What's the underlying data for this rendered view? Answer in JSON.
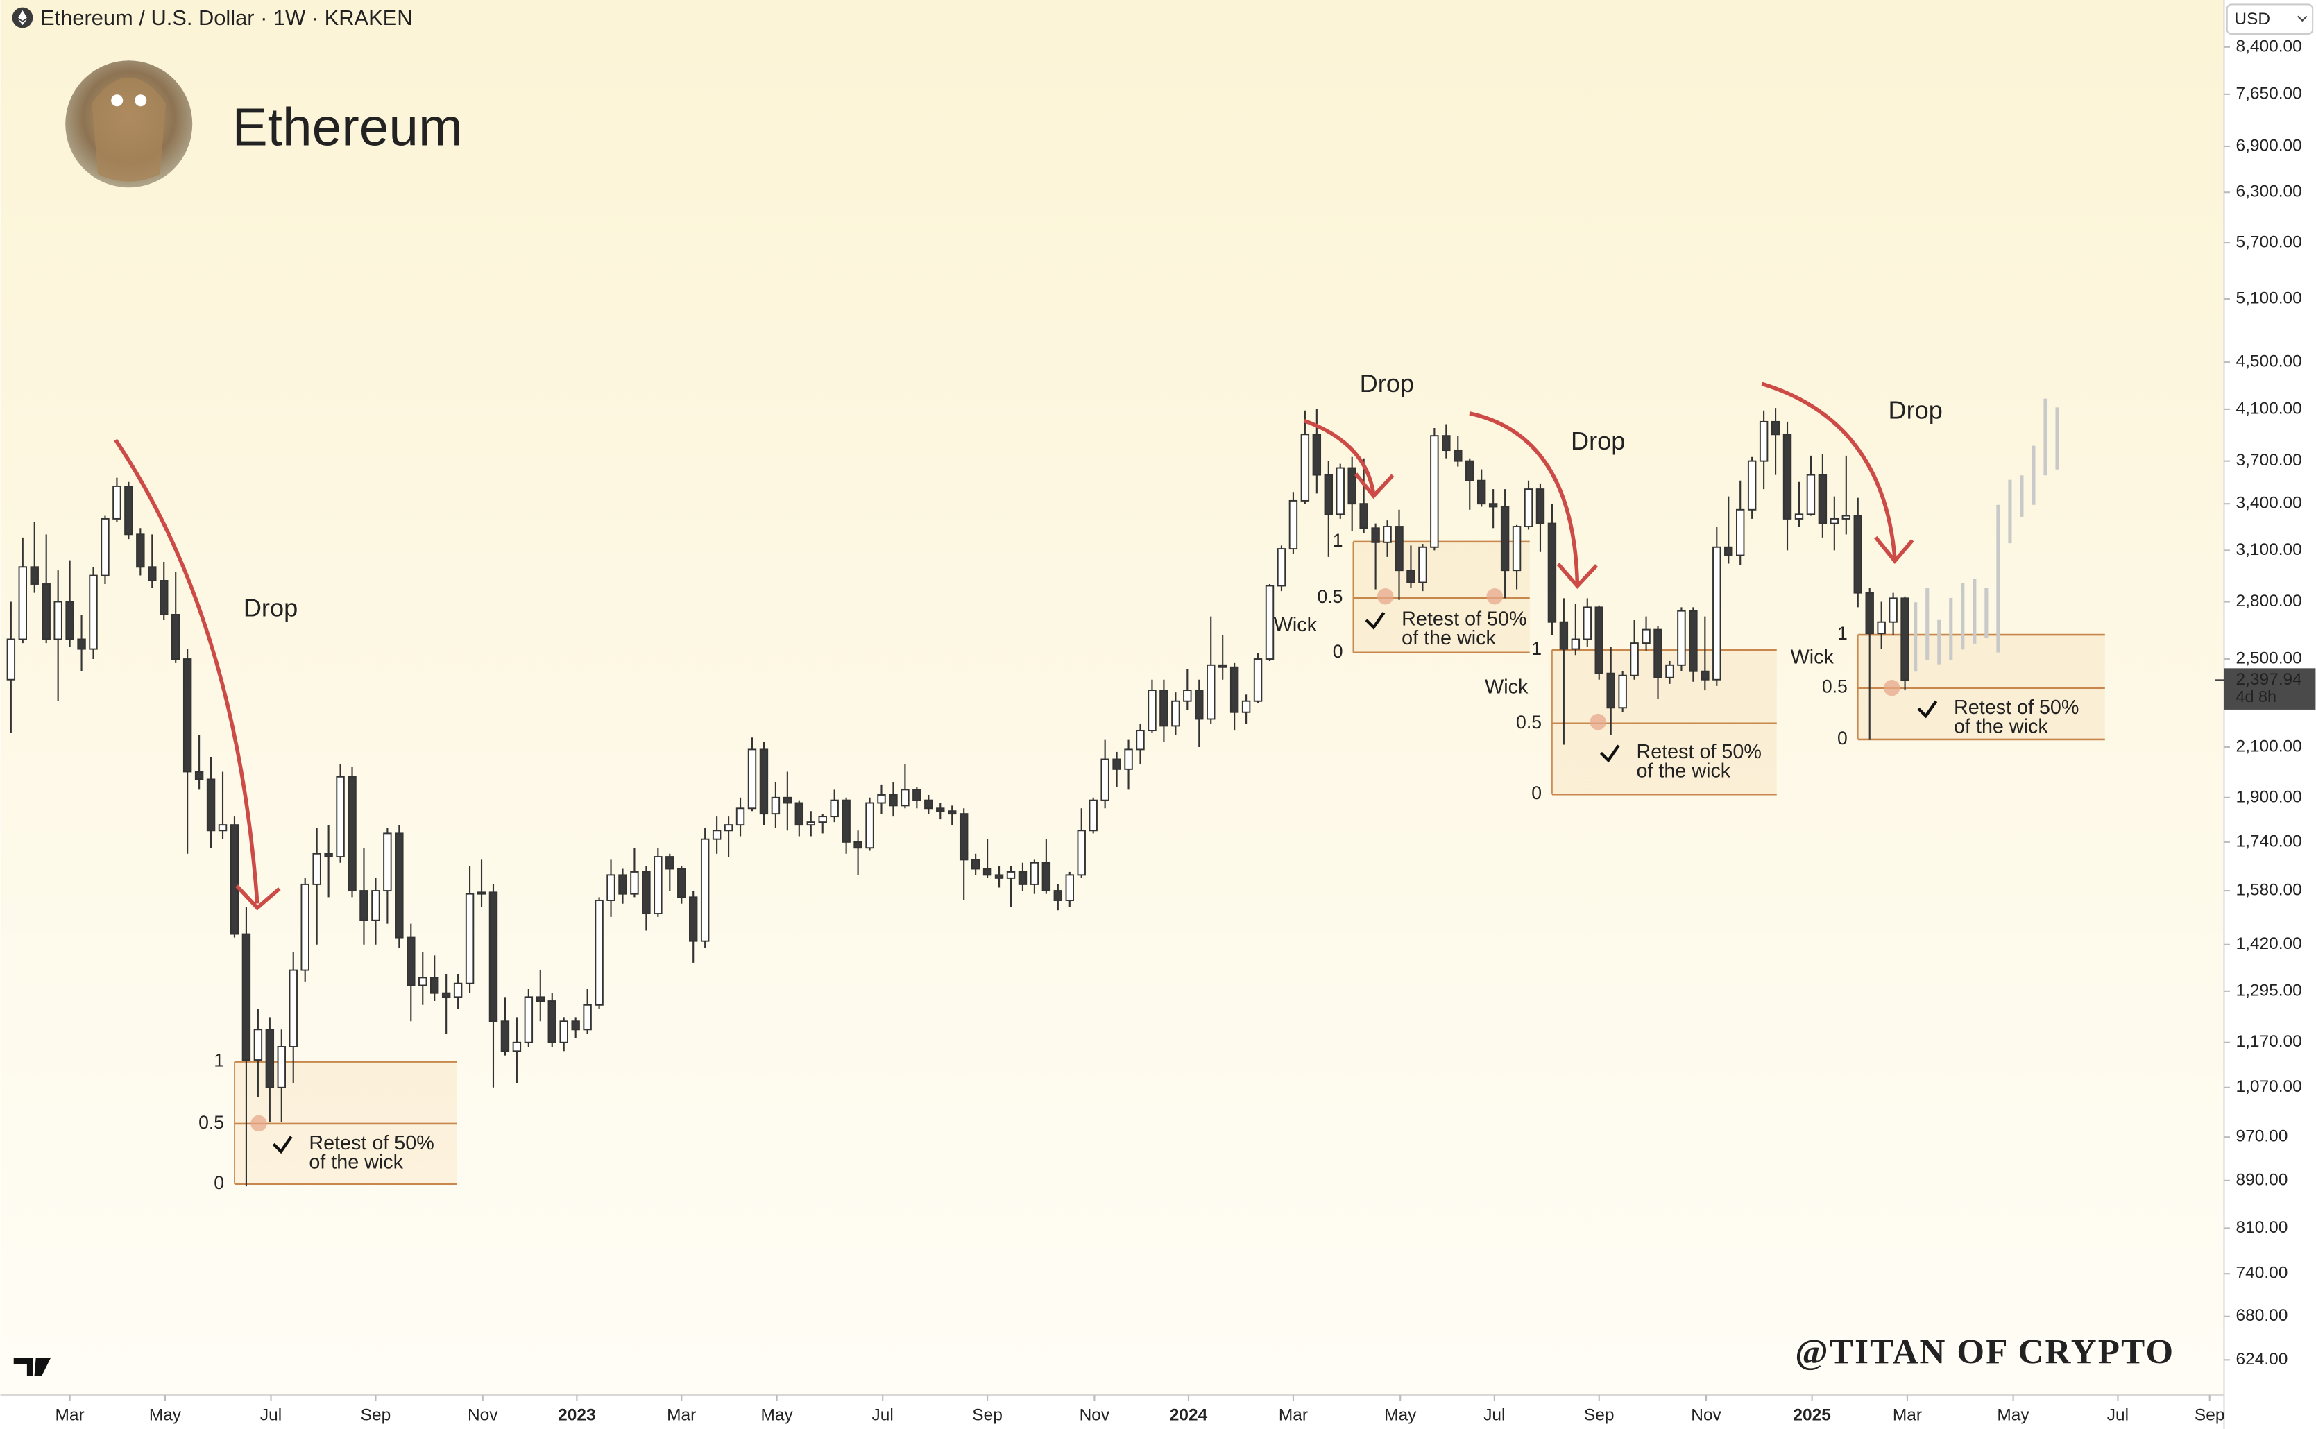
{
  "header": {
    "symbol": "Ethereum / U.S. Dollar · 1W · KRAKEN",
    "name": "Ethereum",
    "currency": "USD",
    "watermark": "@TITAN OF CRYPTO"
  },
  "chart_data": {
    "type": "candlestick",
    "up_color": "#ffffff",
    "down_color": "#3a3a3a",
    "outline_color": "#333333",
    "ohlc": [
      [
        2400,
        2800,
        2160,
        2600
      ],
      [
        2600,
        3180,
        2580,
        3000
      ],
      [
        3000,
        3280,
        2850,
        2900
      ],
      [
        2900,
        3200,
        2580,
        2600
      ],
      [
        2600,
        2980,
        2300,
        2800
      ],
      [
        2800,
        3040,
        2560,
        2600
      ],
      [
        2600,
        2730,
        2440,
        2550
      ],
      [
        2550,
        3000,
        2500,
        2950
      ],
      [
        2950,
        3320,
        2900,
        3300
      ],
      [
        3300,
        3580,
        3280,
        3520
      ],
      [
        3520,
        3550,
        3170,
        3200
      ],
      [
        3200,
        3240,
        2950,
        3000
      ],
      [
        3000,
        3200,
        2880,
        2920
      ],
      [
        2920,
        3030,
        2700,
        2730
      ],
      [
        2730,
        2970,
        2480,
        2500
      ],
      [
        2500,
        2550,
        1700,
        2000
      ],
      [
        2000,
        2150,
        1930,
        1970
      ],
      [
        1970,
        2060,
        1720,
        1780
      ],
      [
        1780,
        2000,
        1750,
        1800
      ],
      [
        1800,
        1830,
        1440,
        1450
      ],
      [
        1450,
        1530,
        880,
        1130
      ],
      [
        1130,
        1250,
        1050,
        1200
      ],
      [
        1200,
        1230,
        1000,
        1070
      ],
      [
        1070,
        1200,
        1000,
        1160
      ],
      [
        1160,
        1400,
        1080,
        1350
      ],
      [
        1350,
        1620,
        1320,
        1600
      ],
      [
        1600,
        1790,
        1420,
        1700
      ],
      [
        1700,
        1800,
        1560,
        1690
      ],
      [
        1690,
        2030,
        1670,
        1980
      ],
      [
        1980,
        2020,
        1560,
        1580
      ],
      [
        1580,
        1720,
        1420,
        1490
      ],
      [
        1490,
        1620,
        1420,
        1580
      ],
      [
        1580,
        1790,
        1480,
        1770
      ],
      [
        1770,
        1800,
        1410,
        1440
      ],
      [
        1440,
        1480,
        1220,
        1310
      ],
      [
        1310,
        1400,
        1260,
        1330
      ],
      [
        1330,
        1390,
        1270,
        1290
      ],
      [
        1290,
        1340,
        1190,
        1280
      ],
      [
        1280,
        1340,
        1250,
        1315
      ],
      [
        1315,
        1660,
        1290,
        1570
      ],
      [
        1570,
        1680,
        1530,
        1575
      ],
      [
        1575,
        1600,
        1070,
        1220
      ],
      [
        1220,
        1280,
        1140,
        1150
      ],
      [
        1150,
        1230,
        1080,
        1170
      ],
      [
        1170,
        1300,
        1160,
        1280
      ],
      [
        1280,
        1350,
        1220,
        1270
      ],
      [
        1270,
        1290,
        1160,
        1170
      ],
      [
        1170,
        1230,
        1150,
        1220
      ],
      [
        1220,
        1230,
        1180,
        1200
      ],
      [
        1200,
        1300,
        1190,
        1260
      ],
      [
        1260,
        1560,
        1250,
        1550
      ],
      [
        1550,
        1680,
        1500,
        1630
      ],
      [
        1630,
        1650,
        1540,
        1570
      ],
      [
        1570,
        1720,
        1560,
        1640
      ],
      [
        1640,
        1660,
        1460,
        1510
      ],
      [
        1510,
        1720,
        1500,
        1690
      ],
      [
        1690,
        1700,
        1580,
        1650
      ],
      [
        1650,
        1660,
        1540,
        1560
      ],
      [
        1560,
        1580,
        1370,
        1430
      ],
      [
        1430,
        1790,
        1410,
        1750
      ],
      [
        1750,
        1830,
        1700,
        1780
      ],
      [
        1780,
        1830,
        1690,
        1800
      ],
      [
        1800,
        1900,
        1760,
        1860
      ],
      [
        1860,
        2140,
        1850,
        2090
      ],
      [
        2090,
        2120,
        1800,
        1840
      ],
      [
        1840,
        1960,
        1790,
        1900
      ],
      [
        1900,
        2000,
        1780,
        1880
      ],
      [
        1880,
        1890,
        1760,
        1800
      ],
      [
        1800,
        1850,
        1760,
        1810
      ],
      [
        1810,
        1840,
        1770,
        1830
      ],
      [
        1830,
        1930,
        1810,
        1890
      ],
      [
        1890,
        1900,
        1700,
        1740
      ],
      [
        1740,
        1780,
        1630,
        1720
      ],
      [
        1720,
        1900,
        1710,
        1880
      ],
      [
        1880,
        1950,
        1840,
        1910
      ],
      [
        1910,
        1960,
        1830,
        1870
      ],
      [
        1870,
        2030,
        1860,
        1930
      ],
      [
        1930,
        1940,
        1860,
        1890
      ],
      [
        1890,
        1910,
        1840,
        1860
      ],
      [
        1860,
        1880,
        1820,
        1850
      ],
      [
        1850,
        1870,
        1800,
        1840
      ],
      [
        1840,
        1860,
        1550,
        1680
      ],
      [
        1680,
        1700,
        1630,
        1650
      ],
      [
        1650,
        1750,
        1620,
        1630
      ],
      [
        1630,
        1660,
        1590,
        1620
      ],
      [
        1620,
        1660,
        1530,
        1640
      ],
      [
        1640,
        1670,
        1580,
        1600
      ],
      [
        1600,
        1680,
        1570,
        1670
      ],
      [
        1670,
        1750,
        1570,
        1580
      ],
      [
        1580,
        1600,
        1520,
        1550
      ],
      [
        1550,
        1640,
        1530,
        1630
      ],
      [
        1630,
        1860,
        1620,
        1780
      ],
      [
        1780,
        1900,
        1770,
        1890
      ],
      [
        1890,
        2130,
        1860,
        2050
      ],
      [
        2050,
        2080,
        1940,
        2010
      ],
      [
        2010,
        2130,
        1930,
        2090
      ],
      [
        2090,
        2200,
        2030,
        2170
      ],
      [
        2170,
        2400,
        2160,
        2350
      ],
      [
        2350,
        2400,
        2120,
        2190
      ],
      [
        2190,
        2340,
        2150,
        2300
      ],
      [
        2300,
        2450,
        2260,
        2350
      ],
      [
        2350,
        2400,
        2100,
        2220
      ],
      [
        2220,
        2720,
        2200,
        2470
      ],
      [
        2470,
        2620,
        2400,
        2460
      ],
      [
        2460,
        2480,
        2170,
        2250
      ],
      [
        2250,
        2330,
        2200,
        2300
      ],
      [
        2300,
        2530,
        2290,
        2500
      ],
      [
        2500,
        2900,
        2490,
        2890
      ],
      [
        2890,
        3130,
        2860,
        3110
      ],
      [
        3110,
        3480,
        3080,
        3420
      ],
      [
        3420,
        4090,
        3400,
        3900
      ],
      [
        3900,
        4100,
        3470,
        3600
      ],
      [
        3600,
        3700,
        3060,
        3330
      ],
      [
        3330,
        3680,
        3300,
        3650
      ],
      [
        3650,
        3730,
        3220,
        3400
      ],
      [
        3400,
        3720,
        3210,
        3240
      ],
      [
        3240,
        3270,
        2870,
        3150
      ],
      [
        3150,
        3290,
        3060,
        3250
      ],
      [
        3250,
        3360,
        2810,
        2980
      ],
      [
        2980,
        3130,
        2880,
        2910
      ],
      [
        2910,
        3140,
        2860,
        3120
      ],
      [
        3120,
        3950,
        3100,
        3890
      ],
      [
        3890,
        3980,
        3720,
        3780
      ],
      [
        3780,
        3890,
        3660,
        3700
      ],
      [
        3700,
        3720,
        3360,
        3560
      ],
      [
        3560,
        3640,
        3380,
        3400
      ],
      [
        3400,
        3500,
        3240,
        3380
      ],
      [
        3380,
        3500,
        2820,
        2980
      ],
      [
        2980,
        3260,
        2870,
        3250
      ],
      [
        3250,
        3560,
        3230,
        3500
      ],
      [
        3500,
        3540,
        3090,
        3270
      ],
      [
        3270,
        3400,
        2620,
        2690
      ],
      [
        2690,
        2820,
        2110,
        2550
      ],
      [
        2550,
        2790,
        2520,
        2600
      ],
      [
        2600,
        2820,
        2560,
        2770
      ],
      [
        2770,
        2780,
        2400,
        2430
      ],
      [
        2430,
        2560,
        2150,
        2270
      ],
      [
        2270,
        2440,
        2250,
        2420
      ],
      [
        2420,
        2700,
        2400,
        2580
      ],
      [
        2580,
        2720,
        2540,
        2650
      ],
      [
        2650,
        2670,
        2310,
        2410
      ],
      [
        2410,
        2490,
        2380,
        2470
      ],
      [
        2470,
        2770,
        2440,
        2750
      ],
      [
        2750,
        2770,
        2390,
        2440
      ],
      [
        2440,
        2720,
        2350,
        2400
      ],
      [
        2400,
        3250,
        2370,
        3120
      ],
      [
        3120,
        3450,
        3020,
        3070
      ],
      [
        3070,
        3560,
        3010,
        3360
      ],
      [
        3360,
        3730,
        3300,
        3700
      ],
      [
        3700,
        4090,
        3500,
        4000
      ],
      [
        4000,
        4110,
        3600,
        3900
      ],
      [
        3900,
        4000,
        3100,
        3300
      ],
      [
        3300,
        3550,
        3250,
        3330
      ],
      [
        3330,
        3740,
        3320,
        3600
      ],
      [
        3600,
        3750,
        3180,
        3270
      ],
      [
        3270,
        3450,
        3100,
        3300
      ],
      [
        3300,
        3740,
        3200,
        3320
      ],
      [
        3320,
        3440,
        2770,
        2850
      ],
      [
        2850,
        2880,
        2130,
        2630
      ],
      [
        2630,
        2800,
        2550,
        2690
      ],
      [
        2690,
        2850,
        2620,
        2820
      ],
      [
        2820,
        2830,
        2350,
        2397.94
      ]
    ],
    "xlim": [
      -0.9,
      188
    ],
    "xticks": [
      {
        "value": 5.0,
        "label": "Mar"
      },
      {
        "value": 13.1,
        "label": "May"
      },
      {
        "value": 22.1,
        "label": "Jul"
      },
      {
        "value": 31.0,
        "label": "Sep"
      },
      {
        "value": 40.1,
        "label": "Nov"
      },
      {
        "value": 48.1,
        "label": "2023"
      },
      {
        "value": 57.0,
        "label": "Mar"
      },
      {
        "value": 65.1,
        "label": "May"
      },
      {
        "value": 74.1,
        "label": "Jul"
      },
      {
        "value": 83.0,
        "label": "Sep"
      },
      {
        "value": 92.1,
        "label": "Nov"
      },
      {
        "value": 100.1,
        "label": "2024"
      },
      {
        "value": 109.0,
        "label": "Mar"
      },
      {
        "value": 118.1,
        "label": "May"
      },
      {
        "value": 126.1,
        "label": "Jul"
      },
      {
        "value": 135.0,
        "label": "Sep"
      },
      {
        "value": 144.1,
        "label": "Nov"
      },
      {
        "value": 153.1,
        "label": "2025"
      },
      {
        "value": 161.2,
        "label": "Mar"
      },
      {
        "value": 170.2,
        "label": "May"
      },
      {
        "value": 179.1,
        "label": "Jul"
      },
      {
        "value": 186.9,
        "label": "Sep"
      }
    ],
    "log_scale": true,
    "ylim": [
      582,
      9220
    ],
    "yticks": [
      {
        "value": 8400,
        "label": "8,400.00"
      },
      {
        "value": 7650,
        "label": "7,650.00"
      },
      {
        "value": 6900,
        "label": "6,900.00"
      },
      {
        "value": 6300,
        "label": "6,300.00"
      },
      {
        "value": 5700,
        "label": "5,700.00"
      },
      {
        "value": 5100,
        "label": "5,100.00"
      },
      {
        "value": 4500,
        "label": "4,500.00"
      },
      {
        "value": 4100,
        "label": "4,100.00"
      },
      {
        "value": 3700,
        "label": "3,700.00"
      },
      {
        "value": 3400,
        "label": "3,400.00"
      },
      {
        "value": 3100,
        "label": "3,100.00"
      },
      {
        "value": 2800,
        "label": "2,800.00"
      },
      {
        "value": 2500,
        "label": "2,500.00"
      },
      {
        "value": 2100,
        "label": "2,100.00"
      },
      {
        "value": 1900,
        "label": "1,900.00"
      },
      {
        "value": 1740,
        "label": "1,740.00"
      },
      {
        "value": 1580,
        "label": "1,580.00"
      },
      {
        "value": 1420,
        "label": "1,420.00"
      },
      {
        "value": 1295,
        "label": "1,295.00"
      },
      {
        "value": 1170,
        "label": "1,170.00"
      },
      {
        "value": 1070,
        "label": "1,070.00"
      },
      {
        "value": 970,
        "label": "970.00"
      },
      {
        "value": 890,
        "label": "890.00"
      },
      {
        "value": 810,
        "label": "810.00"
      },
      {
        "value": 740,
        "label": "740.00"
      },
      {
        "value": 680,
        "label": "680.00"
      },
      {
        "value": 624,
        "label": "624.00"
      }
    ],
    "price_tag": {
      "value": 2397.94,
      "label": "2,397.94",
      "countdown": "4d 8h"
    },
    "fib_levels": [
      1,
      0.5,
      0
    ],
    "fib_color": "#c8874c",
    "fib_boxes": [
      {
        "from": 19.0,
        "to": 37.9,
        "levels": [
          1126,
          996,
          884
        ]
      },
      {
        "from": 114.1,
        "to": 129.1,
        "levels": [
          3154,
          2821,
          2532
        ]
      },
      {
        "from": 131.0,
        "to": 150.1,
        "levels": [
          2546,
          2201,
          1912
        ]
      },
      {
        "from": 157.0,
        "to": 178.0,
        "levels": [
          2623,
          2361,
          2132
        ]
      }
    ],
    "annotations": {
      "drop": "Drop",
      "wick": "Wick",
      "retest": [
        "Retest of 50%",
        "of the wick"
      ]
    }
  }
}
